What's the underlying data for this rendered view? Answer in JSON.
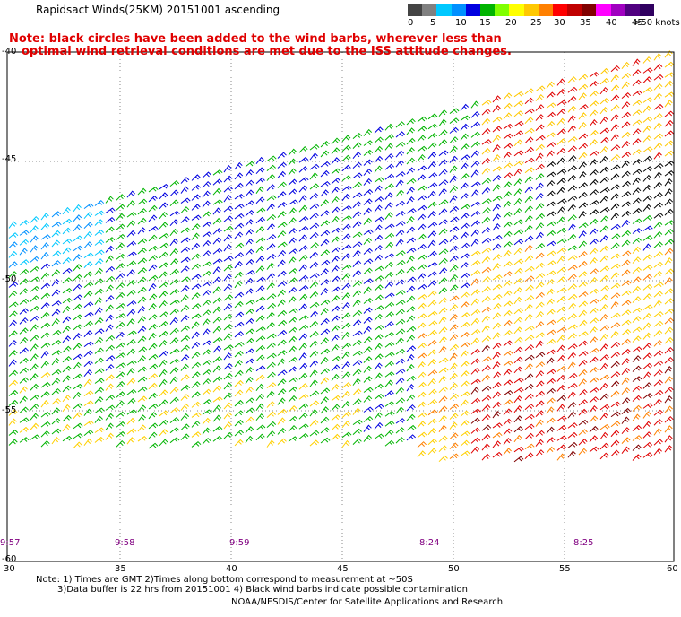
{
  "title": "Rapidsact Winds(25KM) 20151001 ascending",
  "notes": {
    "line1": "Note: black circles have been added to the wind barbs, wherever less than",
    "line2": "optimal wind retrieval conditions are met due to the ISS attitude changes."
  },
  "legend": {
    "colors": [
      "#444444",
      "#808080",
      "#00c8ff",
      "#0090ff",
      "#0000e0",
      "#00b400",
      "#80ff00",
      "#ffff00",
      "#ffc800",
      "#ff8000",
      "#ff0000",
      "#c00000",
      "#800000",
      "#ff00ff",
      "#a000c0",
      "#500080",
      "#300060"
    ],
    "labels": [
      "0",
      "5",
      "10",
      "15",
      "20",
      "25",
      "30",
      "35",
      "40",
      "45",
      ">50 knots"
    ]
  },
  "axes": {
    "lon_labels": [
      "30",
      "35",
      "40",
      "45",
      "50",
      "55",
      "60"
    ],
    "lat_labels": [
      "-40",
      "-45",
      "-50",
      "-55",
      "-60"
    ]
  },
  "times": [
    "9:57",
    "9:58",
    "9:59",
    "8:24",
    "8:25"
  ],
  "footer": {
    "line1": "Note: 1) Times are GMT 2)Times along bottom correspond to measurement at ~50S",
    "line2": "3)Data buffer is 22 hrs from 20151001 4) Black wind barbs indicate possible contamination",
    "line3": "NOAA/NESDIS/Center for Satellite Applications and Research"
  }
}
